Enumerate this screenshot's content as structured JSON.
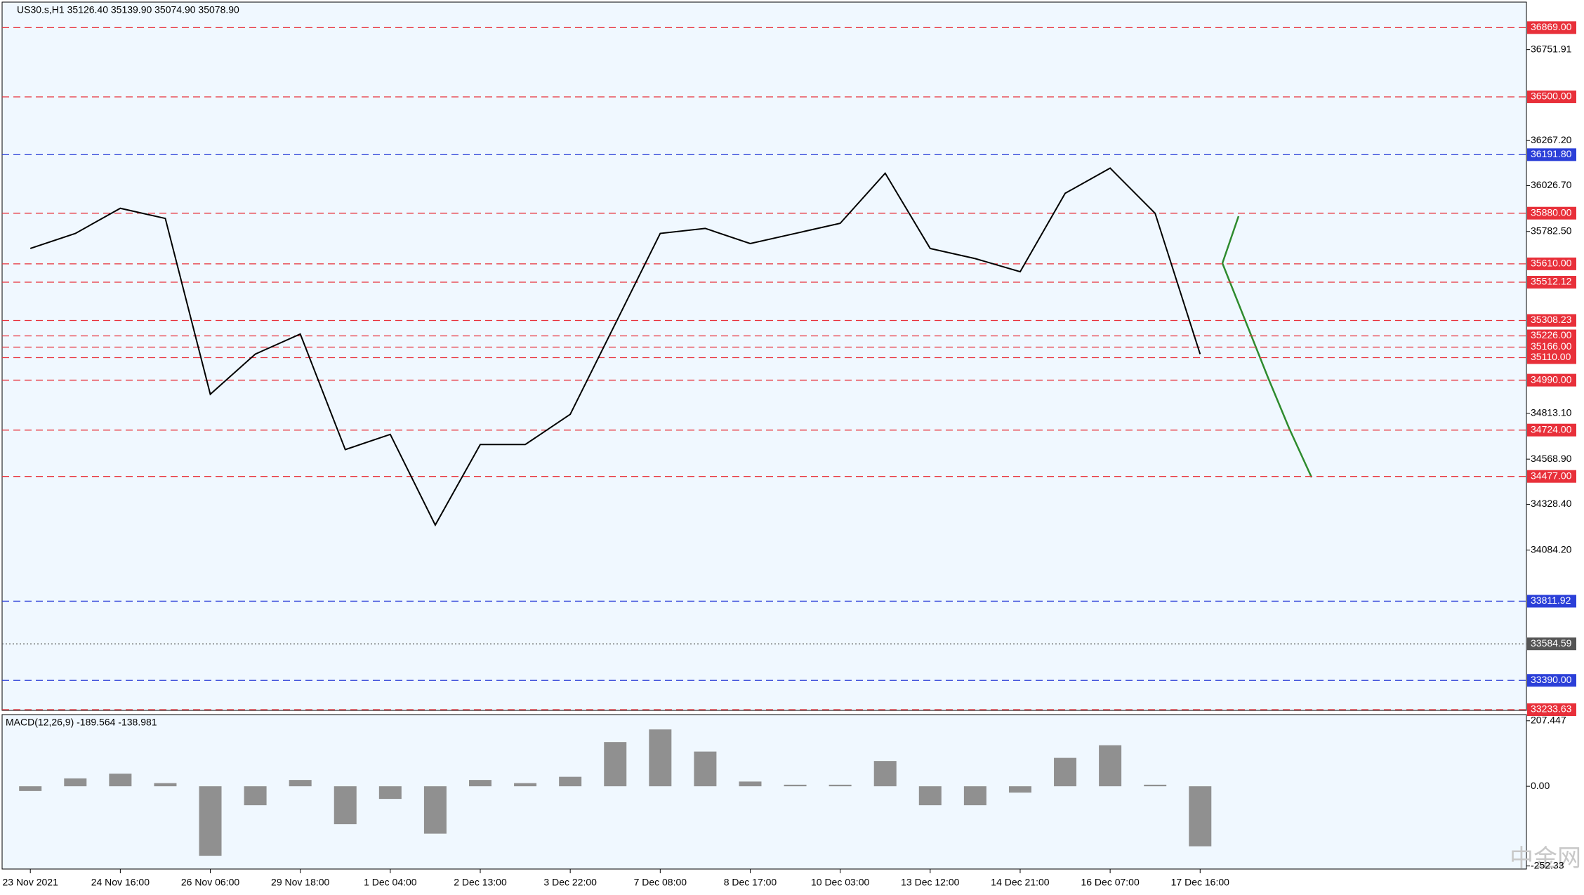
{
  "chart_data": [
    {
      "type": "line",
      "title": "US30.s,H1  35126.40 35139.90 35074.90 35078.90",
      "categories": [
        "23 Nov 2021",
        null,
        "24 Nov 16:00",
        null,
        "26 Nov 06:00",
        null,
        "29 Nov 18:00",
        null,
        "1 Dec 04:00",
        null,
        "2 Dec 13:00",
        null,
        "3 Dec 22:00",
        null,
        "7 Dec 08:00",
        null,
        "8 Dec 17:00",
        null,
        "10 Dec 03:00",
        null,
        "13 Dec 12:00",
        null,
        "14 Dec 21:00",
        null,
        "16 Dec 07:00",
        null,
        "17 Dec 16:00"
      ],
      "series": [
        {
          "color": "#000000",
          "values": [
            35692,
            35772,
            35906,
            35852,
            34915,
            35129,
            35236,
            34620,
            34701,
            34218,
            34647,
            34647,
            34808,
            35290,
            35772,
            35799,
            35718,
            35772,
            35826,
            36093,
            35692,
            35638,
            35568,
            35986,
            36120,
            35879,
            35129
          ]
        }
      ],
      "ylim": [
        33230,
        37005
      ],
      "yticks": [
        {
          "value": 36751.91,
          "label": "36751.91"
        },
        {
          "value": 36267.2,
          "label": "36267.20"
        },
        {
          "value": 36026.7,
          "label": "36026.70"
        },
        {
          "value": 35782.5,
          "label": "35782.50"
        },
        {
          "value": 34813.1,
          "label": "34813.10"
        },
        {
          "value": 34568.9,
          "label": "34568.90"
        },
        {
          "value": 34328.4,
          "label": "34328.40"
        },
        {
          "value": 34084.2,
          "label": "34084.20"
        }
      ],
      "levels": [
        {
          "value": 36869,
          "label": "36869.00",
          "color": "#e8303a"
        },
        {
          "value": 36500,
          "label": "36500.00",
          "color": "#e8303a"
        },
        {
          "value": 36191.8,
          "label": "36191.80",
          "color": "#2b3fd8"
        },
        {
          "value": 35880,
          "label": "35880.00",
          "color": "#e8303a"
        },
        {
          "value": 35610,
          "label": "35610.00",
          "color": "#e8303a"
        },
        {
          "value": 35512.12,
          "label": "35512.12",
          "color": "#e8303a"
        },
        {
          "value": 35308.23,
          "label": "35308.23",
          "color": "#e8303a"
        },
        {
          "value": 35226,
          "label": "35226.00",
          "color": "#e8303a"
        },
        {
          "value": 35166,
          "label": "35166.00",
          "color": "#e8303a"
        },
        {
          "value": 35110,
          "label": "35110.00",
          "color": "#e8303a"
        },
        {
          "value": 34990,
          "label": "34990.00",
          "color": "#e8303a"
        },
        {
          "value": 34724,
          "label": "34724.00",
          "color": "#e8303a"
        },
        {
          "value": 34477,
          "label": "34477.00",
          "color": "#e8303a"
        },
        {
          "value": 33811.92,
          "label": "33811.92",
          "color": "#2b3fd8"
        },
        {
          "value": 33584.59,
          "label": "33584.59",
          "color": "#555555"
        },
        {
          "value": 33390,
          "label": "33390.00",
          "color": "#2b3fd8"
        },
        {
          "value": 33233.63,
          "label": "33233.63",
          "color": "#e8303a"
        }
      ],
      "watermark": "中金网"
    },
    {
      "type": "bar",
      "title": "MACD(12,26,9) -189.564 -138.981",
      "color": "#909090",
      "values": [
        -15,
        25,
        40,
        10,
        -220,
        -60,
        20,
        -120,
        -40,
        -150,
        20,
        10,
        30,
        140,
        180,
        110,
        15,
        5,
        5,
        80,
        -60,
        -60,
        -20,
        90,
        130,
        5,
        -190
      ],
      "ylim": [
        -262,
        227
      ],
      "yticks": [
        {
          "value": 207.447,
          "label": "207.447"
        },
        {
          "value": 0,
          "label": "0.00"
        },
        {
          "value": -252.33,
          "label": "-252.33"
        }
      ]
    }
  ]
}
